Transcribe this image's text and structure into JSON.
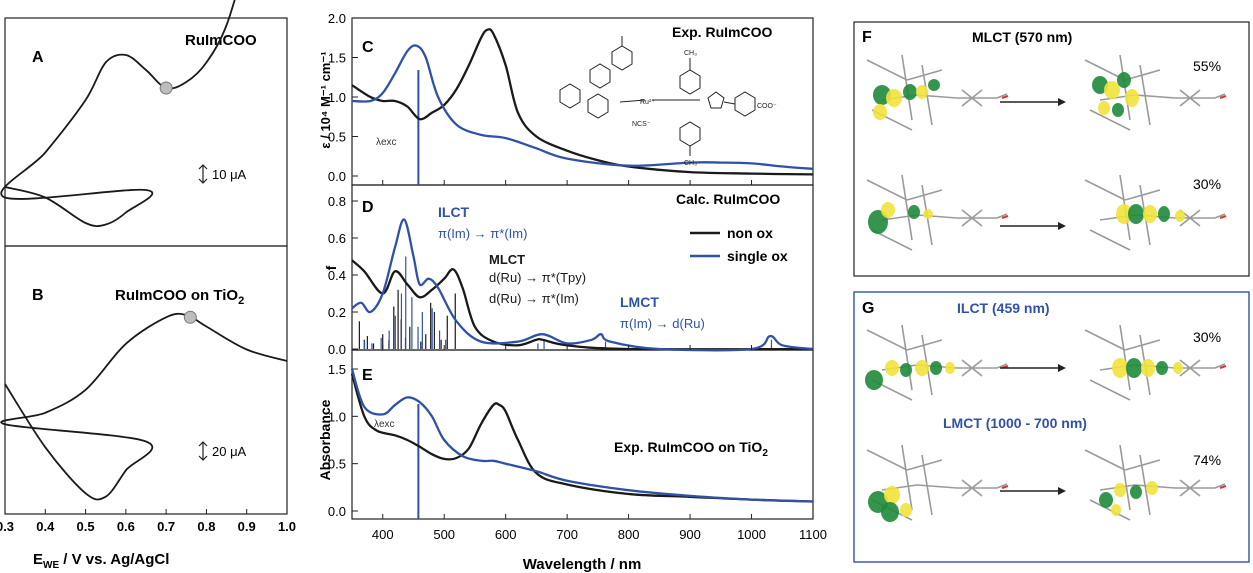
{
  "colors": {
    "black": "#1a1a1a",
    "blue": "#2f52a6",
    "molGreen": "#1f8a3c",
    "molYellow": "#f1e23a",
    "marker": "#bdbdbd"
  },
  "panelA": {
    "letter": "A",
    "title": "RuImCOO",
    "scale": "10 μA"
  },
  "panelB": {
    "letter": "B",
    "title": "RuImCOO on TiO",
    "title_sub": "2",
    "scale": "20 μA"
  },
  "cv_axis": {
    "ticks": [
      "0.3",
      "0.4",
      "0.5",
      "0.6",
      "0.7",
      "0.8",
      "0.9",
      "1.0"
    ],
    "xlabel_main": "E",
    "xlabel_sub": "WE",
    "xlabel_rest": " / V vs. Ag/AgCl"
  },
  "panelC": {
    "letter": "C",
    "title": "Exp. RuImCOO",
    "ylabel": "ε / 10⁴ M⁻¹ cm⁻¹",
    "yticks": [
      "2.0",
      "1.5",
      "1.0",
      "0.5",
      "0.0"
    ],
    "lambda": "λexc"
  },
  "panelD": {
    "letter": "D",
    "title": "Calc. RuImCOO",
    "ylabel": "f",
    "yticks": [
      "0.8",
      "0.6",
      "0.4",
      "0.2",
      "0.0"
    ],
    "legend": [
      "non ox",
      "single ox"
    ],
    "ilct": "ILCT",
    "ilct_tr": "π(Im) → π*(Im)",
    "mlct": "MLCT",
    "mlct_tr1": "d(Ru) → π*(Tpy)",
    "mlct_tr2": "d(Ru) → π*(Im)",
    "lmct": "LMCT",
    "lmct_tr": "π(Im) → d(Ru)"
  },
  "panelE": {
    "letter": "E",
    "title": "Exp. RuImCOO on TiO",
    "title_sub": "2",
    "ylabel": "Absorbance",
    "yticks": [
      "1.5",
      "1.0",
      "0.5",
      "0.0"
    ],
    "lambda": "λexc"
  },
  "spectrum_axis": {
    "xticks": [
      "400",
      "500",
      "600",
      "700",
      "800",
      "900",
      "1000",
      "1100"
    ],
    "xlabel": "Wavelength / nm"
  },
  "panelF": {
    "letter": "F",
    "title": "MLCT (570 nm)",
    "pct1": "55%",
    "pct2": "30%"
  },
  "panelG": {
    "letter": "G",
    "title1": "ILCT (459 nm)",
    "title2": "LMCT (1000 - 700 nm)",
    "pct1": "30%",
    "pct2": "74%"
  },
  "chart_data": [
    {
      "panel": "A",
      "type": "line",
      "title": "RuImCOO",
      "xlabel": "E_WE / V vs. Ag/AgCl",
      "xlim": [
        0.3,
        1.0
      ],
      "series": [
        {
          "x": [
            0.3,
            0.4,
            0.5,
            0.55,
            0.6,
            0.65,
            0.7,
            0.75,
            0.8,
            0.85,
            0.9
          ],
          "y": [
            0.05,
            0.35,
            0.7,
            0.95,
            1.0,
            0.9,
            0.78,
            0.82,
            0.95,
            1.2,
            1.65
          ]
        }
      ],
      "marker_x": 0.7
    },
    {
      "panel": "B",
      "type": "line",
      "title": "RuImCOO on TiO2",
      "xlabel": "E_WE / V vs. Ag/AgCl",
      "xlim": [
        0.3,
        1.0
      ],
      "series": [
        {
          "x": [
            0.3,
            0.4,
            0.5,
            0.6,
            0.7,
            0.75,
            0.8,
            0.9,
            1.0
          ],
          "y": [
            0.05,
            0.15,
            0.35,
            0.75,
            0.98,
            1.0,
            0.9,
            0.7,
            0.6
          ]
        }
      ],
      "marker_x": 0.76
    },
    {
      "panel": "C",
      "type": "line",
      "title": "Exp. RuImCOO",
      "ylabel": "ε / 10⁴ M⁻¹ cm⁻¹",
      "xlim": [
        350,
        1100
      ],
      "ylim": [
        0,
        2.0
      ],
      "series": [
        {
          "name": "non ox",
          "x": [
            350,
            380,
            400,
            420,
            440,
            460,
            480,
            500,
            520,
            540,
            560,
            570,
            580,
            600,
            620,
            650,
            700,
            750,
            800,
            900,
            1000,
            1100
          ],
          "y": [
            1.15,
            1.0,
            0.95,
            0.95,
            0.88,
            0.72,
            0.8,
            0.9,
            1.1,
            1.4,
            1.75,
            1.85,
            1.8,
            1.4,
            0.8,
            0.5,
            0.32,
            0.2,
            0.12,
            0.05,
            0.03,
            0.02
          ]
        },
        {
          "name": "single ox",
          "x": [
            350,
            380,
            400,
            420,
            440,
            455,
            470,
            490,
            520,
            560,
            600,
            650,
            700,
            800,
            900,
            950,
            1000,
            1050,
            1100
          ],
          "y": [
            0.95,
            0.95,
            1.05,
            1.3,
            1.58,
            1.65,
            1.5,
            1.0,
            0.65,
            0.52,
            0.48,
            0.35,
            0.22,
            0.13,
            0.17,
            0.17,
            0.16,
            0.12,
            0.09
          ]
        }
      ],
      "excitation": 458
    },
    {
      "panel": "D",
      "type": "line",
      "title": "Calc. RuImCOO",
      "ylabel": "f",
      "xlim": [
        350,
        1100
      ],
      "ylim": [
        0,
        0.8
      ],
      "series": [
        {
          "name": "non ox",
          "x": [
            350,
            370,
            400,
            420,
            440,
            460,
            480,
            500,
            515,
            530,
            550,
            580,
            620,
            650,
            660,
            700,
            800,
            1100
          ],
          "y": [
            0.48,
            0.42,
            0.3,
            0.42,
            0.35,
            0.28,
            0.32,
            0.38,
            0.43,
            0.33,
            0.12,
            0.04,
            0.02,
            0.05,
            0.05,
            0.02,
            0.0,
            0.0
          ]
        },
        {
          "name": "single ox",
          "x": [
            350,
            365,
            380,
            400,
            420,
            435,
            450,
            460,
            475,
            490,
            520,
            560,
            620,
            660,
            700,
            740,
            755,
            770,
            850,
            1000,
            1030,
            1050,
            1100
          ],
          "y": [
            0.22,
            0.25,
            0.2,
            0.3,
            0.55,
            0.7,
            0.5,
            0.35,
            0.38,
            0.33,
            0.15,
            0.04,
            0.04,
            0.08,
            0.03,
            0.05,
            0.08,
            0.04,
            0.0,
            0.0,
            0.07,
            0.02,
            0.0
          ]
        }
      ],
      "sticks_black": [
        [
          362,
          0.15
        ],
        [
          370,
          0.05
        ],
        [
          375,
          0.07
        ],
        [
          385,
          0.03
        ],
        [
          400,
          0.08
        ],
        [
          410,
          0.05
        ],
        [
          418,
          0.23
        ],
        [
          425,
          0.32
        ],
        [
          430,
          0.16
        ],
        [
          437,
          0.06
        ],
        [
          444,
          0.12
        ],
        [
          462,
          0.04
        ],
        [
          470,
          0.08
        ],
        [
          478,
          0.25
        ],
        [
          484,
          0.2
        ],
        [
          495,
          0.05
        ],
        [
          505,
          0.18
        ],
        [
          518,
          0.3
        ]
      ],
      "sticks_blue": [
        [
          368,
          0.04
        ],
        [
          380,
          0.03
        ],
        [
          395,
          0.06
        ],
        [
          408,
          0.1
        ],
        [
          418,
          0.18
        ],
        [
          428,
          0.3
        ],
        [
          435,
          0.5
        ],
        [
          445,
          0.28
        ],
        [
          455,
          0.12
        ],
        [
          462,
          0.2
        ],
        [
          478,
          0.22
        ],
        [
          490,
          0.1
        ],
        [
          500,
          0.05
        ],
        [
          650,
          0.03
        ],
        [
          660,
          0.05
        ],
        [
          760,
          0.04
        ],
        [
          1030,
          0.05
        ]
      ]
    },
    {
      "panel": "E",
      "type": "line",
      "title": "Exp. RuImCOO on TiO2",
      "ylabel": "Absorbance",
      "xlabel": "Wavelength / nm",
      "xlim": [
        350,
        1100
      ],
      "ylim": [
        0,
        1.6
      ],
      "series": [
        {
          "name": "non ox",
          "x": [
            350,
            370,
            390,
            420,
            440,
            460,
            480,
            500,
            520,
            540,
            560,
            580,
            590,
            600,
            620,
            650,
            700,
            800,
            900,
            1000,
            1100
          ],
          "y": [
            1.45,
            1.0,
            0.85,
            0.8,
            0.75,
            0.68,
            0.6,
            0.55,
            0.56,
            0.66,
            0.92,
            1.12,
            1.12,
            1.05,
            0.75,
            0.4,
            0.28,
            0.18,
            0.15,
            0.12,
            0.1
          ]
        },
        {
          "name": "single ox",
          "x": [
            350,
            370,
            400,
            420,
            440,
            460,
            480,
            500,
            530,
            560,
            580,
            600,
            650,
            700,
            800,
            900,
            1000,
            1100
          ],
          "y": [
            1.5,
            1.1,
            1.02,
            1.12,
            1.2,
            1.15,
            1.0,
            0.75,
            0.58,
            0.53,
            0.53,
            0.5,
            0.42,
            0.32,
            0.22,
            0.16,
            0.12,
            0.1
          ]
        }
      ],
      "excitation": 458
    }
  ]
}
